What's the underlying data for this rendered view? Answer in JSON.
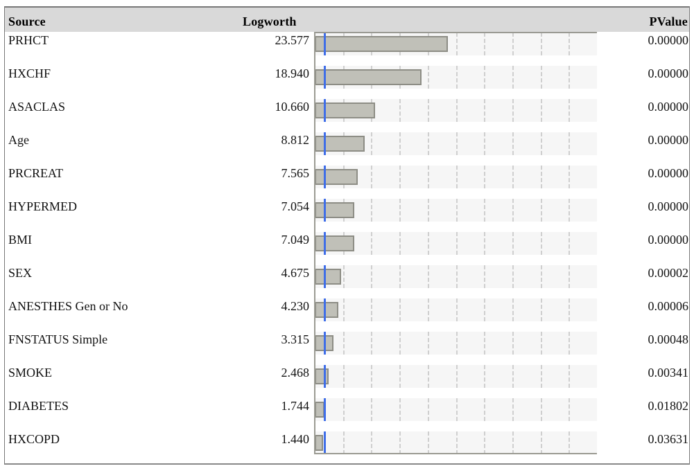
{
  "header": {
    "source": "Source",
    "logworth": "Logworth",
    "pvalue": "PValue"
  },
  "chart_data": {
    "type": "bar",
    "orientation": "horizontal",
    "xlim": [
      0,
      50
    ],
    "reference_line": 2,
    "grid": true,
    "categories": [
      "PRHCT",
      "HXCHF",
      "ASACLAS",
      "Age",
      "PRCREAT",
      "HYPERMED",
      "BMI",
      "SEX",
      "ANESTHES Gen or No",
      "FNSTATUS Simple",
      "SMOKE",
      "DIABETES",
      "HXCOPD"
    ],
    "values": [
      23.577,
      18.94,
      10.66,
      8.812,
      7.565,
      7.054,
      7.049,
      4.675,
      4.23,
      3.315,
      2.468,
      1.744,
      1.44
    ]
  },
  "rows": [
    {
      "source": "PRHCT",
      "logworth": "23.577",
      "pvalue": "0.00000"
    },
    {
      "source": "HXCHF",
      "logworth": "18.940",
      "pvalue": "0.00000"
    },
    {
      "source": "ASACLAS",
      "logworth": "10.660",
      "pvalue": "0.00000"
    },
    {
      "source": "Age",
      "logworth": "8.812",
      "pvalue": "0.00000"
    },
    {
      "source": "PRCREAT",
      "logworth": "7.565",
      "pvalue": "0.00000"
    },
    {
      "source": "HYPERMED",
      "logworth": "7.054",
      "pvalue": "0.00000"
    },
    {
      "source": "BMI",
      "logworth": "7.049",
      "pvalue": "0.00000"
    },
    {
      "source": "SEX",
      "logworth": "4.675",
      "pvalue": "0.00002"
    },
    {
      "source": "ANESTHES Gen or No",
      "logworth": "4.230",
      "pvalue": "0.00006"
    },
    {
      "source": "FNSTATUS Simple",
      "logworth": "3.315",
      "pvalue": "0.00048"
    },
    {
      "source": "SMOKE",
      "logworth": "2.468",
      "pvalue": "0.00341"
    },
    {
      "source": "DIABETES",
      "logworth": "1.744",
      "pvalue": "0.01802"
    },
    {
      "source": "HXCOPD",
      "logworth": "1.440",
      "pvalue": "0.03631"
    }
  ],
  "colors": {
    "bar": "#c0c0b8",
    "reference_line": "#3f6ee8",
    "header_bg": "#d9d9d9"
  }
}
